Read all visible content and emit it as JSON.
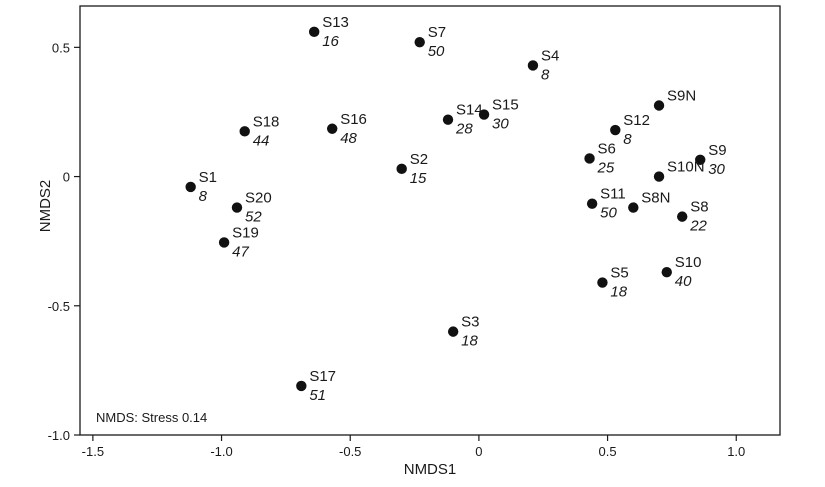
{
  "chart_data": {
    "type": "scatter",
    "xlabel": "NMDS1",
    "ylabel": "NMDS2",
    "xlim": [
      -1.55,
      1.17
    ],
    "ylim": [
      -1.0,
      0.66
    ],
    "xticks": [
      -1.5,
      -1.0,
      -0.5,
      0,
      0.5,
      1.0
    ],
    "xtick_labels": [
      "-1.5",
      "-1.0",
      "-0.5",
      "0",
      "0.5",
      "1.0"
    ],
    "yticks": [
      -1.0,
      -0.5,
      0,
      0.5
    ],
    "ytick_labels": [
      "-1.0",
      "-0.5",
      "0",
      "0.5"
    ],
    "annotation": "NMDS: Stress 0.14",
    "grid": false,
    "marker_color": "#111111",
    "points": [
      {
        "label": "S13",
        "sub": "16",
        "x": -0.64,
        "y": 0.56
      },
      {
        "label": "S7",
        "sub": "50",
        "x": -0.23,
        "y": 0.52
      },
      {
        "label": "S4",
        "sub": "8",
        "x": 0.21,
        "y": 0.43
      },
      {
        "label": "S9N",
        "sub": "",
        "x": 0.7,
        "y": 0.275
      },
      {
        "label": "S12",
        "sub": "8",
        "x": 0.53,
        "y": 0.18
      },
      {
        "label": "S18",
        "sub": "44",
        "x": -0.91,
        "y": 0.175
      },
      {
        "label": "S16",
        "sub": "48",
        "x": -0.57,
        "y": 0.185
      },
      {
        "label": "S14",
        "sub": "28",
        "x": -0.12,
        "y": 0.22
      },
      {
        "label": "S15",
        "sub": "30",
        "x": 0.02,
        "y": 0.24
      },
      {
        "label": "S9",
        "sub": "30",
        "x": 0.86,
        "y": 0.065
      },
      {
        "label": "S6",
        "sub": "25",
        "x": 0.43,
        "y": 0.07
      },
      {
        "label": "S2",
        "sub": "15",
        "x": -0.3,
        "y": 0.03
      },
      {
        "label": "S10N",
        "sub": "",
        "x": 0.7,
        "y": 0.0
      },
      {
        "label": "S1",
        "sub": "8",
        "x": -1.12,
        "y": -0.04
      },
      {
        "label": "S11",
        "sub": "50",
        "x": 0.44,
        "y": -0.105
      },
      {
        "label": "S8N",
        "sub": "",
        "x": 0.6,
        "y": -0.12
      },
      {
        "label": "S20",
        "sub": "52",
        "x": -0.94,
        "y": -0.12
      },
      {
        "label": "S8",
        "sub": "22",
        "x": 0.79,
        "y": -0.155
      },
      {
        "label": "S19",
        "sub": "47",
        "x": -0.99,
        "y": -0.255
      },
      {
        "label": "S10",
        "sub": "40",
        "x": 0.73,
        "y": -0.37
      },
      {
        "label": "S5",
        "sub": "18",
        "x": 0.48,
        "y": -0.41
      },
      {
        "label": "S3",
        "sub": "18",
        "x": -0.1,
        "y": -0.6
      },
      {
        "label": "S17",
        "sub": "51",
        "x": -0.69,
        "y": -0.81
      }
    ]
  }
}
